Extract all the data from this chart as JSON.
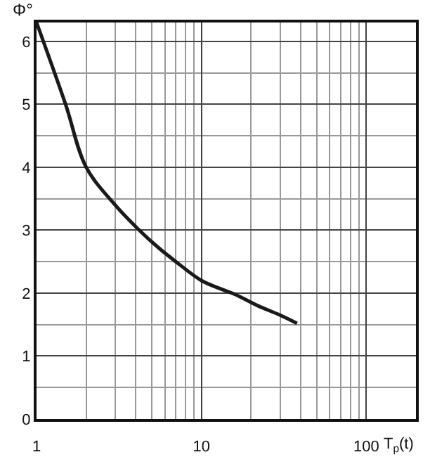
{
  "chart_data": {
    "type": "line",
    "xlabel": "T$_{p}$(t)",
    "ylabel": "Φ°",
    "x": [
      1,
      1.5,
      2,
      3,
      4.2,
      5.5,
      7,
      10,
      13,
      16,
      22,
      30,
      38
    ],
    "values": [
      6.3,
      5,
      4,
      3.4,
      3,
      2.72,
      2.5,
      2.2,
      2.07,
      1.98,
      1.8,
      1.65,
      1.52
    ],
    "color": "#1a1a1a",
    "log": "x",
    "xlim": [
      1,
      200
    ],
    "ylim": [
      0,
      6.3
    ],
    "xticks": [
      1,
      10,
      100
    ],
    "yticks": [
      0,
      1,
      2,
      3,
      4,
      5,
      6
    ],
    "grid": true,
    "marker": "none",
    "line_style": "solid"
  }
}
